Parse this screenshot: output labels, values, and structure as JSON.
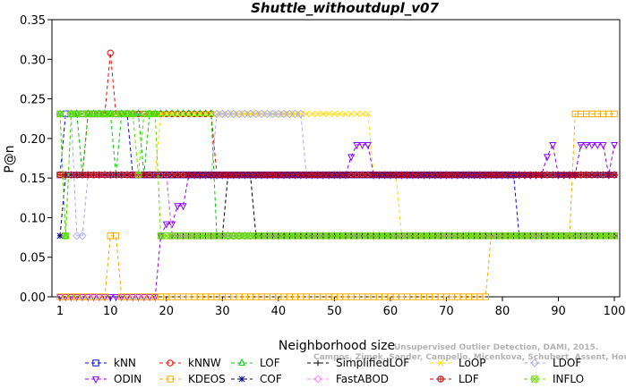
{
  "chart_data": {
    "type": "line",
    "title": "Shuttle_withoutdupl_v07",
    "xlabel": "Neighborhood size",
    "ylabel": "P@n",
    "xlim": [
      1,
      100
    ],
    "ylim": [
      0,
      0.35
    ],
    "x_ticks": [
      1,
      10,
      20,
      30,
      40,
      50,
      60,
      70,
      80,
      90,
      100
    ],
    "y_ticks": [
      "0.00",
      "0.05",
      "0.10",
      "0.15",
      "0.20",
      "0.25",
      "0.30",
      "0.35"
    ],
    "watermark": [
      "Campos, Zimek, Sander, Campello, Micenkova, Schubert, Assent, Houle",
      "Unsupervised Outlier Detection, DAMI, 2015."
    ],
    "legend_placement": "bottom",
    "series": [
      {
        "name": "kNN",
        "color": "#0000ff",
        "marker": "square",
        "segments": [
          [
            1,
            0.154
          ],
          [
            2,
            0.231
          ],
          [
            13,
            0.231
          ],
          [
            14,
            0.154
          ],
          [
            82,
            0.154
          ],
          [
            83,
            0.077
          ],
          [
            100,
            0.077
          ]
        ]
      },
      {
        "name": "kNNW",
        "color": "#ff0000",
        "marker": "circle",
        "segments": [
          [
            1,
            0.154
          ],
          [
            5,
            0.154
          ],
          [
            6,
            0.231
          ],
          [
            9,
            0.231
          ],
          [
            10,
            0.308
          ],
          [
            11,
            0.231
          ],
          [
            28,
            0.231
          ],
          [
            29,
            0.154
          ],
          [
            100,
            0.154
          ]
        ]
      },
      {
        "name": "LOF",
        "color": "#00cc00",
        "marker": "triangle",
        "segments": [
          [
            1,
            0.231
          ],
          [
            2,
            0.077
          ],
          [
            3,
            0.231
          ],
          [
            5,
            0.154
          ],
          [
            6,
            0.231
          ],
          [
            10,
            0.231
          ],
          [
            11,
            0.154
          ],
          [
            12,
            0.231
          ],
          [
            15,
            0.231
          ],
          [
            16,
            0.154
          ],
          [
            17,
            0.231
          ],
          [
            28,
            0.231
          ],
          [
            29,
            0.077
          ],
          [
            100,
            0.077
          ]
        ]
      },
      {
        "name": "SimplifiedLOF",
        "color": "#000000",
        "marker": "plus",
        "segments": [
          [
            1,
            0.154
          ],
          [
            20,
            0.154
          ],
          [
            21,
            0.077
          ],
          [
            30,
            0.077
          ],
          [
            31,
            0.154
          ],
          [
            35,
            0.154
          ],
          [
            36,
            0.077
          ],
          [
            100,
            0.077
          ]
        ]
      },
      {
        "name": "LoOP",
        "color": "#ffdd00",
        "marker": "x",
        "segments": [
          [
            1,
            0.154
          ],
          [
            18,
            0.154
          ],
          [
            19,
            0.231
          ],
          [
            56,
            0.231
          ],
          [
            57,
            0.154
          ],
          [
            61,
            0.154
          ],
          [
            62,
            0.077
          ],
          [
            100,
            0.077
          ]
        ]
      },
      {
        "name": "LDOF",
        "color": "#aaaaff",
        "marker": "diamond",
        "segments": [
          [
            1,
            0.231
          ],
          [
            3,
            0.231
          ],
          [
            4,
            0.077
          ],
          [
            5,
            0.077
          ],
          [
            6,
            0.154
          ],
          [
            28,
            0.154
          ],
          [
            29,
            0.231
          ],
          [
            44,
            0.231
          ],
          [
            45,
            0.154
          ],
          [
            100,
            0.154
          ]
        ]
      },
      {
        "name": "ODIN",
        "color": "#8800ff",
        "marker": "triangle-down",
        "segments": [
          [
            1,
            0.0
          ],
          [
            18,
            0.0
          ],
          [
            19,
            0.077
          ],
          [
            20,
            0.092
          ],
          [
            22,
            0.115
          ],
          [
            24,
            0.154
          ],
          [
            52,
            0.154
          ],
          [
            53,
            0.177
          ],
          [
            54,
            0.192
          ],
          [
            56,
            0.192
          ],
          [
            57,
            0.154
          ],
          [
            87,
            0.154
          ],
          [
            88,
            0.177
          ],
          [
            89,
            0.192
          ],
          [
            90,
            0.154
          ],
          [
            93,
            0.154
          ],
          [
            94,
            0.192
          ],
          [
            98,
            0.192
          ],
          [
            99,
            0.154
          ],
          [
            100,
            0.192
          ]
        ]
      },
      {
        "name": "KDEOS",
        "color": "#ffaa00",
        "marker": "square",
        "segments": [
          [
            1,
            0.0
          ],
          [
            9,
            0.0
          ],
          [
            10,
            0.077
          ],
          [
            11,
            0.077
          ],
          [
            12,
            0.0
          ],
          [
            77,
            0.0
          ],
          [
            78,
            0.077
          ],
          [
            92,
            0.077
          ],
          [
            93,
            0.231
          ],
          [
            100,
            0.231
          ]
        ]
      },
      {
        "name": "COF",
        "color": "#000080",
        "marker": "star",
        "segments": [
          [
            1,
            0.077
          ],
          [
            2,
            0.154
          ],
          [
            100,
            0.154
          ]
        ]
      },
      {
        "name": "FastABOD",
        "color": "#ff88ff",
        "marker": "diamond",
        "segments": [
          [
            1,
            0.154
          ],
          [
            20,
            0.154
          ],
          [
            21,
            0.077
          ],
          [
            100,
            0.077
          ]
        ]
      },
      {
        "name": "LDF",
        "color": "#cc0000",
        "marker": "circle-plus",
        "segments": [
          [
            1,
            0.154
          ],
          [
            100,
            0.154
          ]
        ]
      },
      {
        "name": "INFLO",
        "color": "#66dd00",
        "marker": "square-x",
        "segments": [
          [
            1,
            0.231
          ],
          [
            2,
            0.077
          ],
          [
            3,
            0.231
          ],
          [
            14,
            0.231
          ],
          [
            15,
            0.154
          ],
          [
            16,
            0.231
          ],
          [
            18,
            0.231
          ],
          [
            19,
            0.077
          ],
          [
            100,
            0.077
          ]
        ]
      }
    ]
  }
}
